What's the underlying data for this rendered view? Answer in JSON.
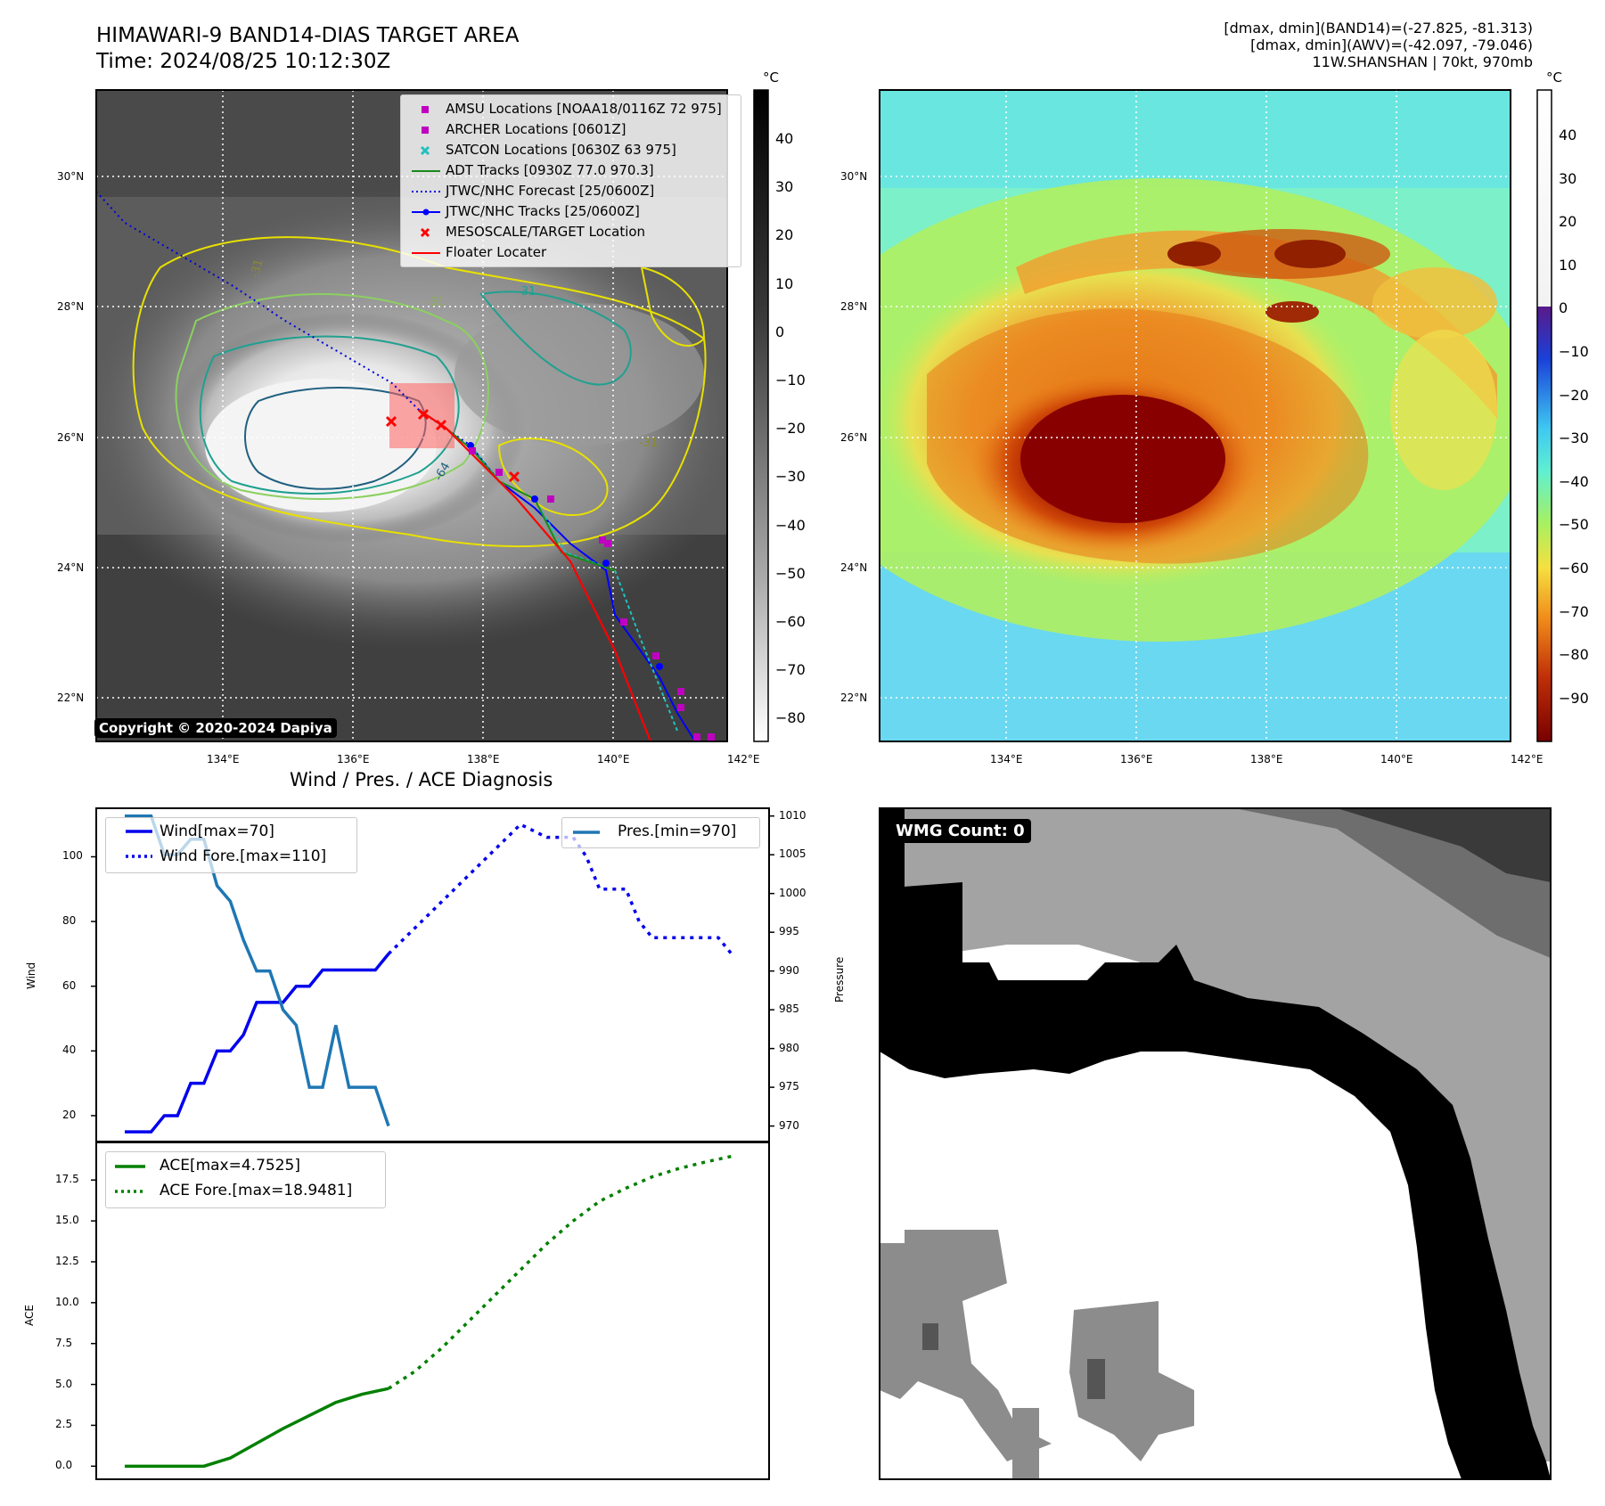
{
  "header": {
    "title_line1": "HIMAWARI-9 BAND14-DIAS TARGET AREA",
    "title_line2": "Time: 2024/08/25 10:12:30Z",
    "stats_line1": "[dmax, dmin](BAND14)=(-27.825, -81.313)",
    "stats_line2": "[dmax, dmin](AWV)=(-42.097, -79.046)",
    "stats_line3": "11W.SHANSHAN | 70kt, 970mb"
  },
  "map": {
    "lon_ticks": [
      "134°E",
      "136°E",
      "138°E",
      "140°E",
      "142°E"
    ],
    "lat_ticks": [
      "30°N",
      "28°N",
      "26°N",
      "24°N",
      "22°N"
    ],
    "copyright": "Copyright © 2020-2024 Dapiya",
    "colorbar_unit": "°C",
    "legend": [
      {
        "label": "AMSU Locations [NOAA18/0116Z 72 975]",
        "color": "#c000c0",
        "marker": "square"
      },
      {
        "label": "ARCHER Locations [0601Z]",
        "color": "#c000c0",
        "marker": "square"
      },
      {
        "label": "SATCON Locations [0630Z 63 975]",
        "color": "#20c0c0",
        "marker": "x"
      },
      {
        "label": "ADT Tracks [0930Z 77.0 970.3]",
        "color": "#1a8a1a",
        "marker": "line"
      },
      {
        "label": "JTWC/NHC Forecast [25/0600Z]",
        "color": "#0000dd",
        "marker": "dotted"
      },
      {
        "label": "JTWC/NHC Tracks [25/0600Z]",
        "color": "#0000ff",
        "marker": "line-dot"
      },
      {
        "label": "MESOSCALE/TARGET Location",
        "color": "#ff0000",
        "marker": "x"
      },
      {
        "label": "Floater Locater",
        "color": "#ff0000",
        "marker": "line"
      }
    ],
    "gray_colorbar_ticks": [
      "40",
      "30",
      "20",
      "10",
      "0",
      "−10",
      "−20",
      "−30",
      "−40",
      "−50",
      "−60",
      "−70",
      "−80"
    ],
    "color_colorbar_ticks": [
      "40",
      "30",
      "20",
      "10",
      "0",
      "−10",
      "−20",
      "−30",
      "−40",
      "−50",
      "−60",
      "−70",
      "−80",
      "−90"
    ],
    "contour_labels": [
      "-31",
      "-31",
      "-31",
      "-64",
      "-31"
    ]
  },
  "wmg": {
    "label": "WMG Count: 0"
  },
  "chart_data": [
    {
      "type": "line",
      "title": "Wind / Pres. / ACE Diagnosis",
      "ylabel": "Wind",
      "ylabel_right": "Pressure",
      "ylim": [
        12,
        115
      ],
      "ylim_right": [
        968,
        1011
      ],
      "yticks": [
        20,
        40,
        60,
        80,
        100
      ],
      "yticks_right": [
        970,
        975,
        980,
        985,
        990,
        995,
        1000,
        1005,
        1010
      ],
      "series": [
        {
          "name": "Wind[max=70]",
          "color": "#0000ee",
          "style": "solid",
          "axis": "left",
          "x": [
            0,
            1,
            2,
            3,
            4,
            5,
            6,
            7,
            8,
            9,
            10,
            11,
            12,
            13,
            14,
            15,
            16,
            17,
            18,
            19,
            20
          ],
          "values": [
            15,
            15,
            15,
            20,
            20,
            30,
            30,
            40,
            40,
            45,
            55,
            55,
            55,
            60,
            60,
            65,
            65,
            65,
            65,
            65,
            70
          ]
        },
        {
          "name": "Wind Fore.[max=110]",
          "color": "#0000ee",
          "style": "dotted",
          "axis": "left",
          "x": [
            20,
            22,
            24,
            26,
            28,
            30,
            32,
            34,
            35,
            36,
            37,
            38,
            39,
            40,
            41,
            42,
            43,
            44,
            45,
            46
          ],
          "values": [
            70,
            78,
            86,
            94,
            102,
            110,
            106,
            106,
            100,
            90,
            90,
            90,
            80,
            75,
            75,
            75,
            75,
            75,
            75,
            70
          ]
        },
        {
          "name": "Pres.[min=970]",
          "color": "#1f77b4",
          "style": "solid",
          "axis": "right",
          "x": [
            0,
            1,
            2,
            3,
            4,
            5,
            6,
            7,
            8,
            9,
            10,
            11,
            12,
            13,
            14,
            15,
            16,
            17,
            18,
            19,
            20
          ],
          "values": [
            1010,
            1010,
            1010,
            1005,
            1005,
            1007,
            1007,
            1001,
            999,
            994,
            990,
            990,
            985,
            983,
            975,
            975,
            983,
            975,
            975,
            975,
            970
          ]
        }
      ]
    },
    {
      "type": "line",
      "ylabel": "ACE",
      "ylim": [
        -0.8,
        19.8
      ],
      "yticks": [
        0.0,
        2.5,
        5.0,
        7.5,
        10.0,
        12.5,
        15.0,
        17.5
      ],
      "series": [
        {
          "name": "ACE[max=4.7525]",
          "color": "#008000",
          "style": "solid",
          "x": [
            0,
            2,
            4,
            6,
            8,
            10,
            12,
            14,
            16,
            18,
            20
          ],
          "values": [
            0,
            0,
            0,
            0,
            0.5,
            1.4,
            2.3,
            3.1,
            3.9,
            4.4,
            4.75
          ]
        },
        {
          "name": "ACE Fore.[max=18.9481]",
          "color": "#008000",
          "style": "dotted",
          "x": [
            20,
            22,
            24,
            26,
            28,
            30,
            32,
            34,
            36,
            38,
            40,
            42,
            44,
            46
          ],
          "values": [
            4.75,
            5.8,
            7.2,
            8.8,
            10.4,
            12.0,
            13.6,
            15.0,
            16.2,
            17.0,
            17.7,
            18.2,
            18.6,
            18.95
          ]
        }
      ]
    }
  ]
}
